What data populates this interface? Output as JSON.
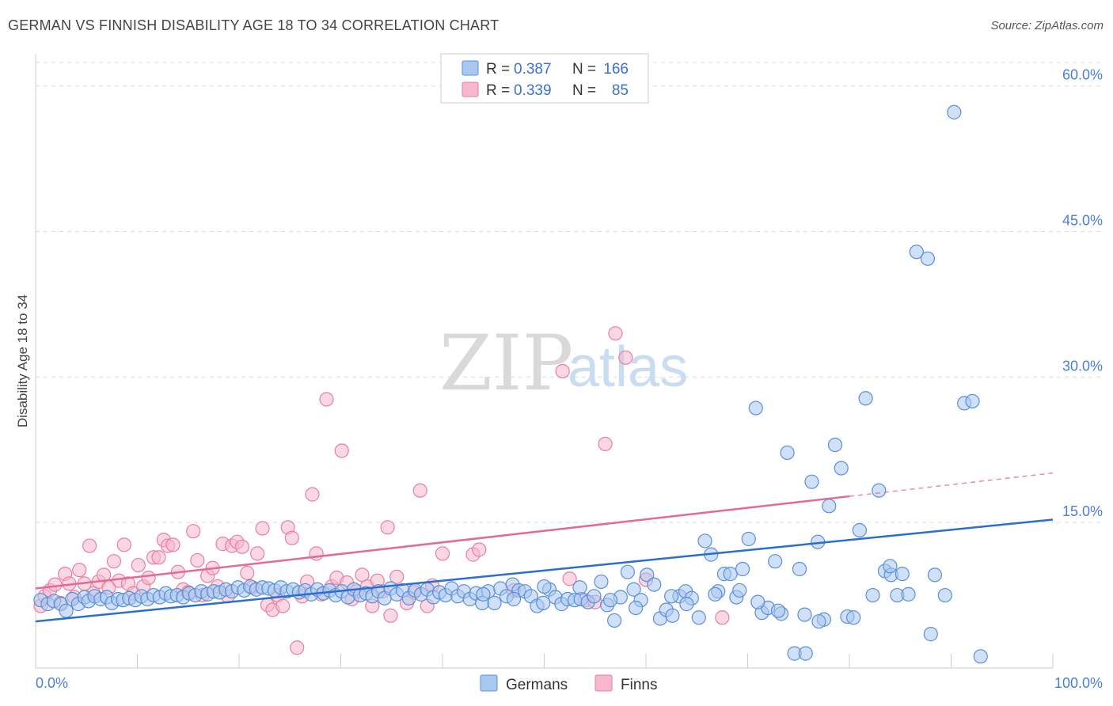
{
  "title": "GERMAN VS FINNISH DISABILITY AGE 18 TO 34 CORRELATION CHART",
  "source": "Source: ZipAtlas.com",
  "watermark": {
    "part1": "ZIP",
    "part2": "atlas"
  },
  "colors": {
    "german_fill": "#a9c8f0",
    "german_stroke": "#5a8fd8",
    "german_line": "#2a6fd0",
    "finn_fill": "#f5b8cc",
    "finn_stroke": "#e87ea0",
    "finn_line": "#e46a94",
    "tick_text": "#4a7fd4",
    "grid": "#dddddd"
  },
  "legend": {
    "rows": [
      {
        "r_label": "R =",
        "r_value": "0.387",
        "n_label": "N =",
        "n_value": "166"
      },
      {
        "r_label": "R =",
        "r_value": "0.339",
        "n_label": "N =",
        "n_value": "85"
      }
    ]
  },
  "chart_data": {
    "type": "scatter",
    "title": "GERMAN VS FINNISH DISABILITY AGE 18 TO 34 CORRELATION CHART",
    "xlabel": "",
    "ylabel": "Disability Age 18 to 34",
    "xlim": [
      0,
      100
    ],
    "ylim": [
      0,
      62.5
    ],
    "x_tick_labels": [
      "0.0%",
      "100.0%"
    ],
    "y_ticks": [
      15,
      30,
      45,
      60
    ],
    "y_tick_labels": [
      "15.0%",
      "30.0%",
      "45.0%",
      "60.0%"
    ],
    "grid": true,
    "legend_position": "top-center",
    "series": [
      {
        "name": "Germans",
        "r": 0.387,
        "n": 166,
        "trend": {
          "x": [
            0,
            100
          ],
          "y": [
            4.8,
            15.3
          ]
        },
        "points": [
          [
            0.5,
            7.0
          ],
          [
            1.2,
            6.6
          ],
          [
            1.8,
            6.9
          ],
          [
            2.5,
            6.6
          ],
          [
            3.0,
            5.9
          ],
          [
            3.6,
            7.1
          ],
          [
            4.2,
            6.6
          ],
          [
            4.8,
            7.3
          ],
          [
            5.2,
            6.9
          ],
          [
            5.8,
            7.4
          ],
          [
            6.4,
            7.1
          ],
          [
            7.0,
            7.3
          ],
          [
            7.5,
            6.7
          ],
          [
            8.1,
            7.1
          ],
          [
            8.6,
            7.0
          ],
          [
            9.2,
            7.2
          ],
          [
            9.8,
            7.0
          ],
          [
            10.4,
            7.4
          ],
          [
            11.0,
            7.1
          ],
          [
            11.6,
            7.5
          ],
          [
            12.2,
            7.3
          ],
          [
            12.8,
            7.7
          ],
          [
            13.3,
            7.4
          ],
          [
            13.9,
            7.5
          ],
          [
            14.5,
            7.3
          ],
          [
            15.1,
            7.7
          ],
          [
            15.7,
            7.5
          ],
          [
            16.3,
            7.9
          ],
          [
            16.9,
            7.6
          ],
          [
            17.5,
            7.9
          ],
          [
            18.1,
            7.8
          ],
          [
            18.7,
            8.1
          ],
          [
            19.3,
            7.9
          ],
          [
            19.9,
            8.3
          ],
          [
            20.5,
            8.0
          ],
          [
            21.1,
            8.4
          ],
          [
            21.7,
            8.1
          ],
          [
            22.3,
            8.3
          ],
          [
            22.9,
            8.2
          ],
          [
            23.5,
            8.0
          ],
          [
            24.1,
            8.3
          ],
          [
            24.7,
            7.9
          ],
          [
            25.3,
            8.1
          ],
          [
            25.9,
            7.8
          ],
          [
            26.5,
            8.0
          ],
          [
            27.1,
            7.6
          ],
          [
            27.7,
            8.1
          ],
          [
            28.3,
            7.7
          ],
          [
            28.9,
            8.0
          ],
          [
            29.5,
            7.5
          ],
          [
            30.1,
            7.9
          ],
          [
            30.7,
            7.3
          ],
          [
            31.3,
            8.1
          ],
          [
            31.9,
            7.5
          ],
          [
            32.5,
            7.7
          ],
          [
            33.1,
            7.4
          ],
          [
            33.7,
            7.9
          ],
          [
            34.3,
            7.2
          ],
          [
            34.9,
            8.2
          ],
          [
            35.5,
            7.6
          ],
          [
            36.1,
            8.0
          ],
          [
            36.7,
            7.2
          ],
          [
            37.3,
            8.0
          ],
          [
            37.9,
            7.6
          ],
          [
            38.5,
            8.1
          ],
          [
            39.1,
            7.3
          ],
          [
            39.7,
            7.8
          ],
          [
            40.3,
            7.5
          ],
          [
            40.9,
            8.2
          ],
          [
            41.5,
            7.4
          ],
          [
            42.1,
            7.9
          ],
          [
            42.7,
            7.1
          ],
          [
            43.3,
            7.7
          ],
          [
            43.9,
            6.7
          ],
          [
            44.5,
            7.9
          ],
          [
            45.1,
            6.7
          ],
          [
            45.7,
            8.2
          ],
          [
            46.3,
            7.4
          ],
          [
            46.9,
            8.6
          ],
          [
            47.5,
            8.0
          ],
          [
            48.1,
            7.9
          ],
          [
            48.7,
            7.4
          ],
          [
            49.3,
            6.4
          ],
          [
            49.9,
            6.7
          ],
          [
            50.5,
            8.1
          ],
          [
            51.1,
            7.3
          ],
          [
            51.7,
            6.6
          ],
          [
            52.3,
            7.1
          ],
          [
            53.0,
            7.0
          ],
          [
            53.6,
            7.1
          ],
          [
            54.3,
            6.8
          ],
          [
            54.9,
            7.4
          ],
          [
            55.6,
            8.9
          ],
          [
            56.2,
            6.5
          ],
          [
            56.9,
            4.9
          ],
          [
            57.5,
            7.3
          ],
          [
            58.2,
            9.9
          ],
          [
            58.8,
            8.1
          ],
          [
            59.5,
            7.0
          ],
          [
            60.1,
            9.6
          ],
          [
            60.8,
            8.6
          ],
          [
            61.4,
            5.1
          ],
          [
            62.0,
            6.0
          ],
          [
            62.6,
            5.4
          ],
          [
            63.3,
            7.4
          ],
          [
            63.9,
            7.9
          ],
          [
            64.5,
            7.2
          ],
          [
            65.2,
            5.2
          ],
          [
            65.8,
            13.1
          ],
          [
            66.4,
            11.7
          ],
          [
            67.1,
            7.9
          ],
          [
            67.7,
            9.7
          ],
          [
            68.3,
            9.7
          ],
          [
            68.9,
            7.3
          ],
          [
            69.5,
            10.2
          ],
          [
            70.1,
            13.3
          ],
          [
            70.8,
            26.8
          ],
          [
            71.4,
            5.7
          ],
          [
            72.0,
            6.2
          ],
          [
            72.7,
            11.0
          ],
          [
            73.3,
            5.6
          ],
          [
            73.9,
            22.2
          ],
          [
            74.6,
            1.5
          ],
          [
            75.1,
            10.2
          ],
          [
            75.7,
            1.5
          ],
          [
            76.3,
            19.2
          ],
          [
            76.9,
            13.0
          ],
          [
            77.5,
            5.0
          ],
          [
            78.0,
            16.7
          ],
          [
            78.6,
            23.0
          ],
          [
            79.2,
            20.6
          ],
          [
            79.8,
            5.3
          ],
          [
            80.4,
            5.2
          ],
          [
            81.0,
            14.2
          ],
          [
            81.6,
            27.8
          ],
          [
            82.3,
            7.5
          ],
          [
            82.9,
            18.3
          ],
          [
            83.5,
            10.0
          ],
          [
            84.1,
            9.6
          ],
          [
            84.7,
            7.5
          ],
          [
            85.2,
            9.7
          ],
          [
            85.8,
            7.6
          ],
          [
            86.6,
            42.9
          ],
          [
            87.7,
            42.2
          ],
          [
            88.0,
            3.5
          ],
          [
            88.4,
            9.6
          ],
          [
            89.4,
            7.5
          ],
          [
            90.3,
            57.3
          ],
          [
            91.3,
            27.3
          ],
          [
            92.1,
            27.5
          ],
          [
            92.9,
            1.2
          ],
          [
            84.0,
            10.5
          ],
          [
            44.0,
            7.6
          ],
          [
            47.0,
            7.1
          ],
          [
            50.0,
            8.4
          ],
          [
            53.5,
            8.3
          ],
          [
            56.5,
            7.0
          ],
          [
            59.0,
            6.2
          ],
          [
            62.5,
            7.4
          ],
          [
            64.0,
            6.6
          ],
          [
            66.8,
            7.6
          ],
          [
            69.2,
            8.0
          ],
          [
            71.0,
            6.8
          ],
          [
            73.0,
            5.9
          ],
          [
            75.6,
            5.5
          ],
          [
            77.0,
            4.8
          ]
        ]
      },
      {
        "name": "Finns",
        "r": 0.339,
        "n": 85,
        "trend": {
          "x": [
            0,
            80
          ],
          "y": [
            8.2,
            17.7
          ]
        },
        "trend_dashed": {
          "x": [
            80,
            100
          ],
          "y": [
            17.7,
            20.1
          ]
        },
        "points": [
          [
            0.5,
            6.4
          ],
          [
            0.9,
            7.4
          ],
          [
            1.4,
            8.0
          ],
          [
            1.9,
            8.6
          ],
          [
            2.4,
            6.7
          ],
          [
            2.9,
            9.7
          ],
          [
            3.3,
            8.7
          ],
          [
            3.8,
            7.3
          ],
          [
            4.3,
            10.1
          ],
          [
            4.8,
            8.7
          ],
          [
            5.3,
            12.6
          ],
          [
            5.7,
            7.7
          ],
          [
            6.2,
            8.9
          ],
          [
            6.7,
            9.6
          ],
          [
            7.2,
            8.3
          ],
          [
            7.7,
            11.0
          ],
          [
            8.2,
            9.0
          ],
          [
            8.7,
            12.7
          ],
          [
            9.1,
            8.7
          ],
          [
            9.6,
            7.7
          ],
          [
            10.1,
            10.6
          ],
          [
            10.6,
            8.4
          ],
          [
            11.1,
            9.3
          ],
          [
            11.6,
            11.4
          ],
          [
            12.1,
            11.4
          ],
          [
            12.6,
            13.2
          ],
          [
            13.0,
            12.6
          ],
          [
            13.5,
            12.7
          ],
          [
            14.0,
            9.9
          ],
          [
            14.5,
            8.1
          ],
          [
            15.0,
            7.8
          ],
          [
            15.5,
            14.1
          ],
          [
            15.9,
            11.1
          ],
          [
            16.4,
            7.5
          ],
          [
            16.9,
            9.5
          ],
          [
            17.4,
            10.3
          ],
          [
            17.9,
            8.4
          ],
          [
            18.4,
            12.8
          ],
          [
            18.9,
            7.4
          ],
          [
            19.3,
            12.6
          ],
          [
            19.8,
            13.0
          ],
          [
            20.3,
            12.5
          ],
          [
            20.8,
            9.8
          ],
          [
            21.3,
            8.3
          ],
          [
            21.8,
            11.8
          ],
          [
            22.3,
            14.4
          ],
          [
            22.8,
            6.5
          ],
          [
            23.3,
            6.0
          ],
          [
            23.8,
            7.5
          ],
          [
            24.3,
            6.4
          ],
          [
            24.8,
            14.5
          ],
          [
            25.2,
            13.4
          ],
          [
            25.7,
            2.1
          ],
          [
            26.2,
            7.4
          ],
          [
            26.7,
            8.9
          ],
          [
            27.2,
            17.9
          ],
          [
            27.6,
            11.8
          ],
          [
            28.1,
            7.6
          ],
          [
            28.6,
            27.7
          ],
          [
            29.1,
            8.4
          ],
          [
            29.6,
            9.3
          ],
          [
            30.1,
            22.4
          ],
          [
            30.6,
            8.8
          ],
          [
            31.1,
            7.1
          ],
          [
            31.6,
            7.9
          ],
          [
            32.1,
            9.6
          ],
          [
            32.6,
            8.4
          ],
          [
            33.1,
            6.4
          ],
          [
            33.6,
            9.0
          ],
          [
            34.1,
            7.9
          ],
          [
            34.6,
            14.5
          ],
          [
            34.9,
            5.4
          ],
          [
            35.5,
            9.4
          ],
          [
            36.5,
            6.7
          ],
          [
            37.2,
            7.8
          ],
          [
            37.8,
            18.3
          ],
          [
            38.5,
            6.4
          ],
          [
            39.0,
            8.5
          ],
          [
            40.0,
            11.8
          ],
          [
            43.0,
            11.7
          ],
          [
            43.6,
            12.2
          ],
          [
            47.0,
            8.0
          ],
          [
            51.8,
            30.6
          ],
          [
            52.5,
            9.2
          ],
          [
            54.0,
            7.0
          ],
          [
            55.0,
            6.8
          ],
          [
            56.0,
            23.1
          ],
          [
            57.0,
            34.5
          ],
          [
            58.0,
            32.0
          ],
          [
            60.0,
            9.1
          ],
          [
            67.5,
            5.2
          ]
        ]
      }
    ]
  },
  "bottom_legend": {
    "items": [
      "Germans",
      "Finns"
    ]
  }
}
